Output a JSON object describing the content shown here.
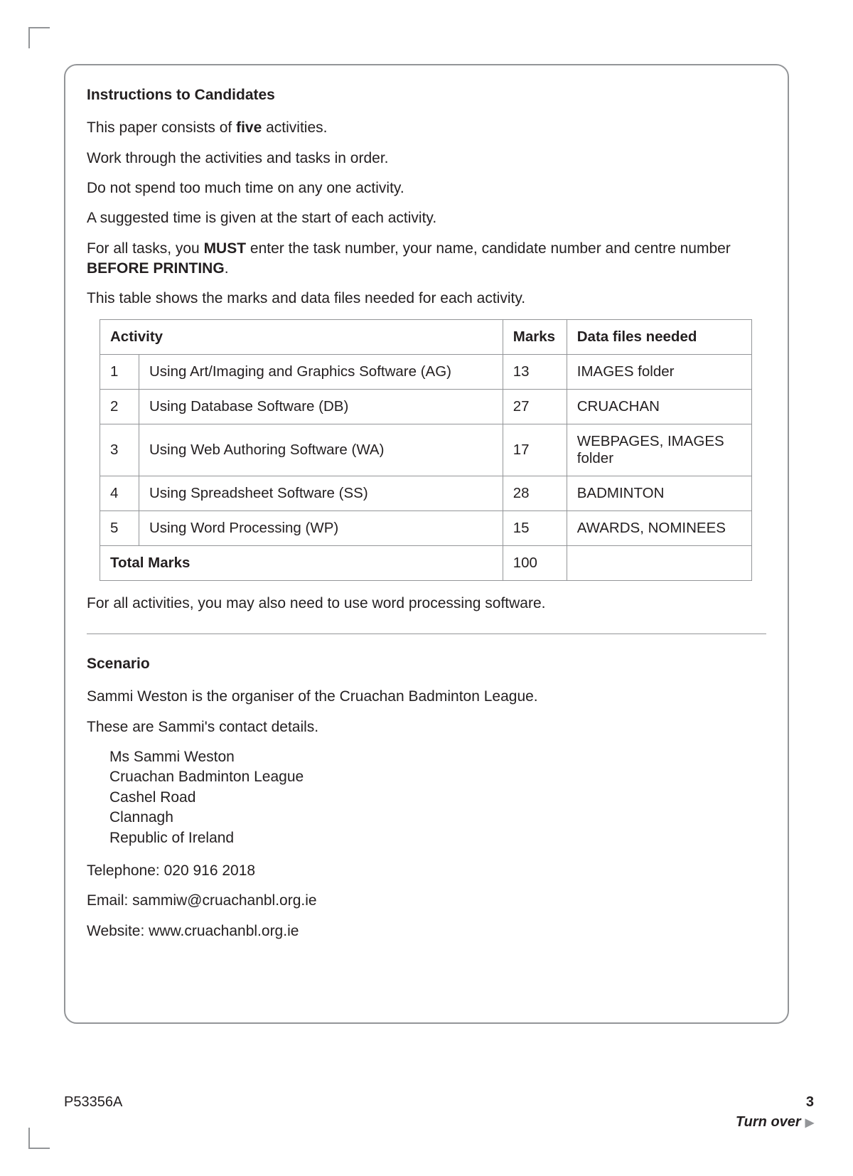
{
  "instructions": {
    "heading": "Instructions to Candidates",
    "p1_a": "This paper consists of ",
    "p1_bold": "five",
    "p1_b": " activities.",
    "p2": "Work through the activities and tasks in order.",
    "p3": "Do not spend too much time on any one activity.",
    "p4": "A suggested time is given at the start of each activity.",
    "p5_a": "For all tasks, you ",
    "p5_b1": "MUST",
    "p5_b": " enter the task number, your name, candidate number and centre number ",
    "p5_b2": "BEFORE PRINTING",
    "p5_c": ".",
    "p6": "This table shows the marks and data files needed for each activity."
  },
  "table": {
    "headers": {
      "activity": "Activity",
      "marks": "Marks",
      "files": "Data files needed"
    },
    "rows": [
      {
        "num": "1",
        "desc": "Using Art/Imaging and Graphics Software (AG)",
        "marks": "13",
        "files": "IMAGES folder"
      },
      {
        "num": "2",
        "desc": "Using Database Software (DB)",
        "marks": "27",
        "files": "CRUACHAN"
      },
      {
        "num": "3",
        "desc": "Using Web Authoring Software (WA)",
        "marks": "17",
        "files": "WEBPAGES, IMAGES folder"
      },
      {
        "num": "4",
        "desc": "Using Spreadsheet Software (SS)",
        "marks": "28",
        "files": "BADMINTON"
      },
      {
        "num": "5",
        "desc": "Using Word Processing (WP)",
        "marks": "15",
        "files": "AWARDS, NOMINEES"
      }
    ],
    "total_label": "Total Marks",
    "total_value": "100"
  },
  "post_table": "For all activities, you may also need to use word processing software.",
  "scenario": {
    "heading": "Scenario",
    "p1": "Sammi Weston is the organiser of the Cruachan Badminton League.",
    "p2": "These are Sammi's contact details.",
    "address": {
      "l1": "Ms Sammi Weston",
      "l2": "Cruachan Badminton League",
      "l3": "Cashel Road",
      "l4": "Clannagh",
      "l5": "Republic of Ireland"
    },
    "tel": "Telephone: 020 916 2018",
    "email": "Email: sammiw@cruachanbl.org.ie",
    "web": "Website: www.cruachanbl.org.ie"
  },
  "footer": {
    "code": "P53356A",
    "page": "3",
    "turn": "Turn over"
  }
}
